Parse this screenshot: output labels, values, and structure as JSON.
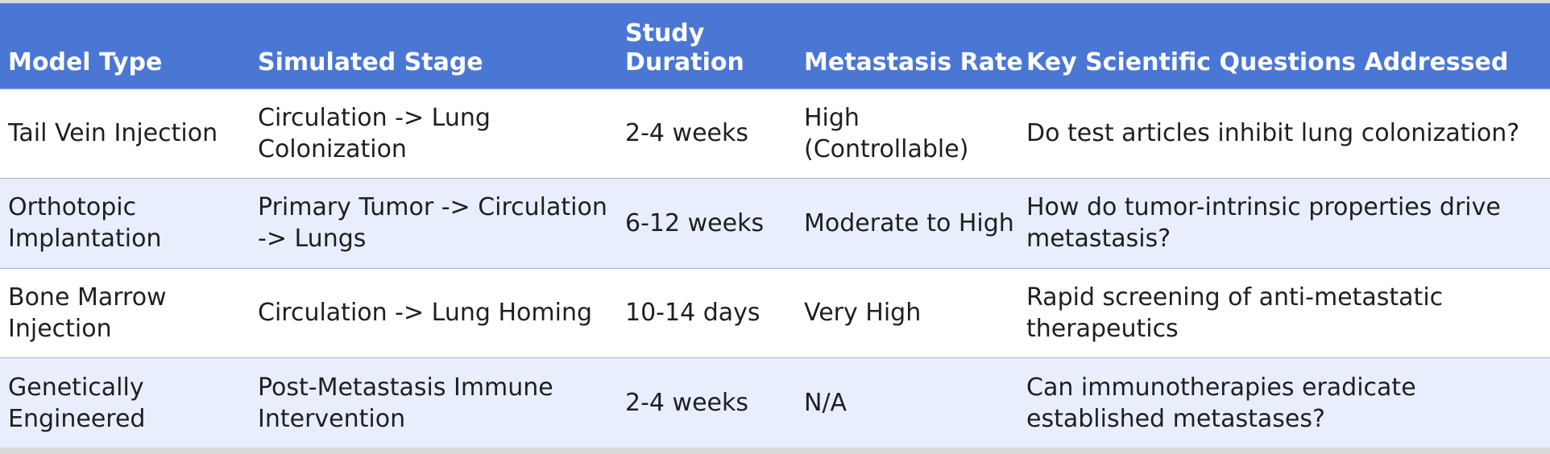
{
  "table": {
    "headers": [
      "Model Type",
      "Simulated Stage",
      "Study Duration",
      "Metastasis Rate",
      "Key Scientific Questions Addressed"
    ],
    "rows": [
      [
        "Tail Vein Injection",
        "Circulation -> Lung Colonization",
        "2-4 weeks",
        "High (Controllable)",
        "Do test articles inhibit lung colonization?"
      ],
      [
        "Orthotopic Implantation",
        "Primary Tumor -> Circulation -> Lungs",
        "6-12 weeks",
        "Moderate to High",
        "How do tumor-intrinsic properties drive metastasis?"
      ],
      [
        "Bone Marrow Injection",
        "Circulation -> Lung Homing",
        "10-14 days",
        "Very High",
        "Rapid screening of anti-metastatic therapeutics"
      ],
      [
        "Genetically Engineered",
        "Post-Metastasis Immune Intervention",
        "2-4 weeks",
        "N/A",
        "Can immunotherapies eradicate established metastases?"
      ]
    ]
  },
  "colors": {
    "header_bg": "#4a77d3",
    "header_text": "#ffffff",
    "row_alt_bg": "#e8eefc",
    "row_bg": "#ffffff",
    "row_border": "#9fb3e6"
  }
}
